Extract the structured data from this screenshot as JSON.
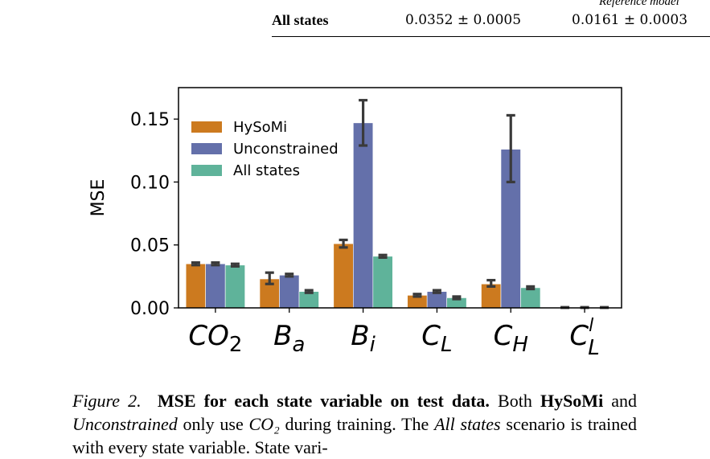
{
  "table": {
    "caption": "Reference model",
    "row_label": "All states",
    "col1": "0.0352 ± 0.0005",
    "col2": "0.0161 ± 0.0003"
  },
  "figure_caption": {
    "label": "Figure 2.",
    "title": "MSE for each state variable on test data.",
    "text_1": "Both",
    "bold_1": "HySoMi",
    "text_2": "and",
    "italic_1": "Unconstrained",
    "text_3": "only use",
    "math_1": "CO₂",
    "text_4": "during training. The",
    "italic_2": "All states",
    "text_5": "scenario is trained with every state variable. State vari-"
  },
  "chart_data": {
    "type": "bar",
    "ylabel": "MSE",
    "xlabel": "",
    "ylim": [
      0,
      0.175
    ],
    "yticks": [
      0.0,
      0.05,
      0.1,
      0.15
    ],
    "ytick_labels": [
      "0.00",
      "0.05",
      "0.10",
      "0.15"
    ],
    "categories": [
      "CO2",
      "Ba",
      "Bi",
      "CL",
      "CH",
      "CLl"
    ],
    "category_labels": [
      {
        "base": "CO",
        "sub": "2",
        "sup": ""
      },
      {
        "base": "B",
        "sub": "a",
        "sup": ""
      },
      {
        "base": "B",
        "sub": "i",
        "sup": ""
      },
      {
        "base": "C",
        "sub": "L",
        "sup": ""
      },
      {
        "base": "C",
        "sub": "H",
        "sup": ""
      },
      {
        "base": "C",
        "sub": "L",
        "sup": "l"
      }
    ],
    "legend_position": "upper-left",
    "grid": false,
    "series": [
      {
        "name": "HySoMi",
        "color": "#cc7a1f",
        "values": [
          0.035,
          0.023,
          0.051,
          0.01,
          0.019,
          0.0003
        ],
        "err_low": [
          0.034,
          0.019,
          0.048,
          0.009,
          0.017,
          0.0001
        ],
        "err_high": [
          0.036,
          0.028,
          0.054,
          0.011,
          0.022,
          0.0005
        ]
      },
      {
        "name": "Unconstrained",
        "color": "#6470aa",
        "values": [
          0.035,
          0.026,
          0.147,
          0.013,
          0.126,
          0.0003
        ],
        "err_low": [
          0.034,
          0.025,
          0.129,
          0.012,
          0.1,
          0.0001
        ],
        "err_high": [
          0.036,
          0.027,
          0.165,
          0.014,
          0.153,
          0.0005
        ]
      },
      {
        "name": "All states",
        "color": "#5fb39a",
        "values": [
          0.034,
          0.013,
          0.041,
          0.008,
          0.016,
          0.0003
        ],
        "err_low": [
          0.033,
          0.012,
          0.04,
          0.007,
          0.015,
          0.0001
        ],
        "err_high": [
          0.035,
          0.014,
          0.042,
          0.009,
          0.017,
          0.0005
        ]
      }
    ]
  }
}
